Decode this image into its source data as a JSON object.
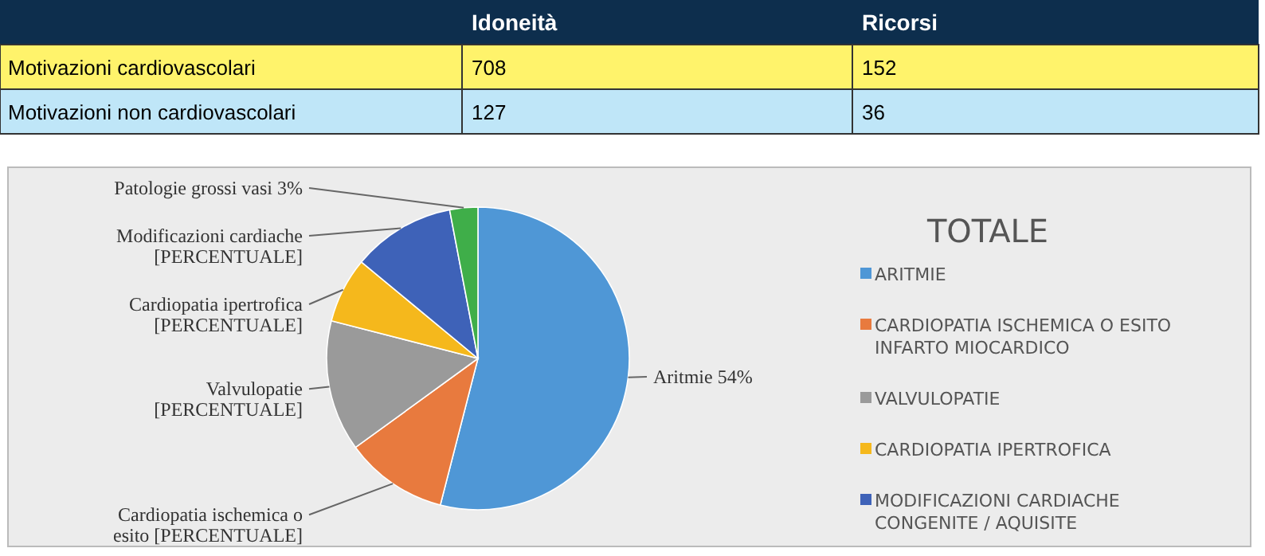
{
  "chart_data": [
    {
      "type": "heatmap",
      "categories": [
        "Idoneità",
        "Ricorsi"
      ],
      "y_categories": [
        "Motivazioni cardiovascolari",
        "Motivazioni non cardiovascolari"
      ],
      "cells": [
        [
          708,
          152
        ],
        [
          127,
          36
        ]
      ],
      "data_labels": true
    },
    {
      "type": "pie",
      "legend_title": "TOTALE",
      "legend": "right",
      "categories": [
        "ARITMIE",
        "CARDIOPATIA ISCHEMICA O ESITO INFARTO MIOCARDICO",
        "VALVULOPATIE",
        "CARDIOPATIA IPERTROFICA",
        "MODIFICAZIONI CARDIACHE CONGENITE / AQUISITE",
        null
      ],
      "values": [
        54,
        11,
        14,
        7,
        11,
        3
      ],
      "colors": [
        "#4f97d6",
        "#e87a3e",
        "#9a9a9a",
        "#f5b81c",
        "#3e62b8",
        "#3fae49"
      ],
      "value_labels": [
        "Aritmie 54%",
        "Cardiopatia ischemica o esito [PERCENTUALE]",
        "Valvulopatie [PERCENTUALE]",
        "Cardiopatia ipertrofica [PERCENTUALE]",
        "Modificazioni cardiache [PERCENTUALE]",
        "Patologie grossi vasi 3%"
      ]
    }
  ]
}
